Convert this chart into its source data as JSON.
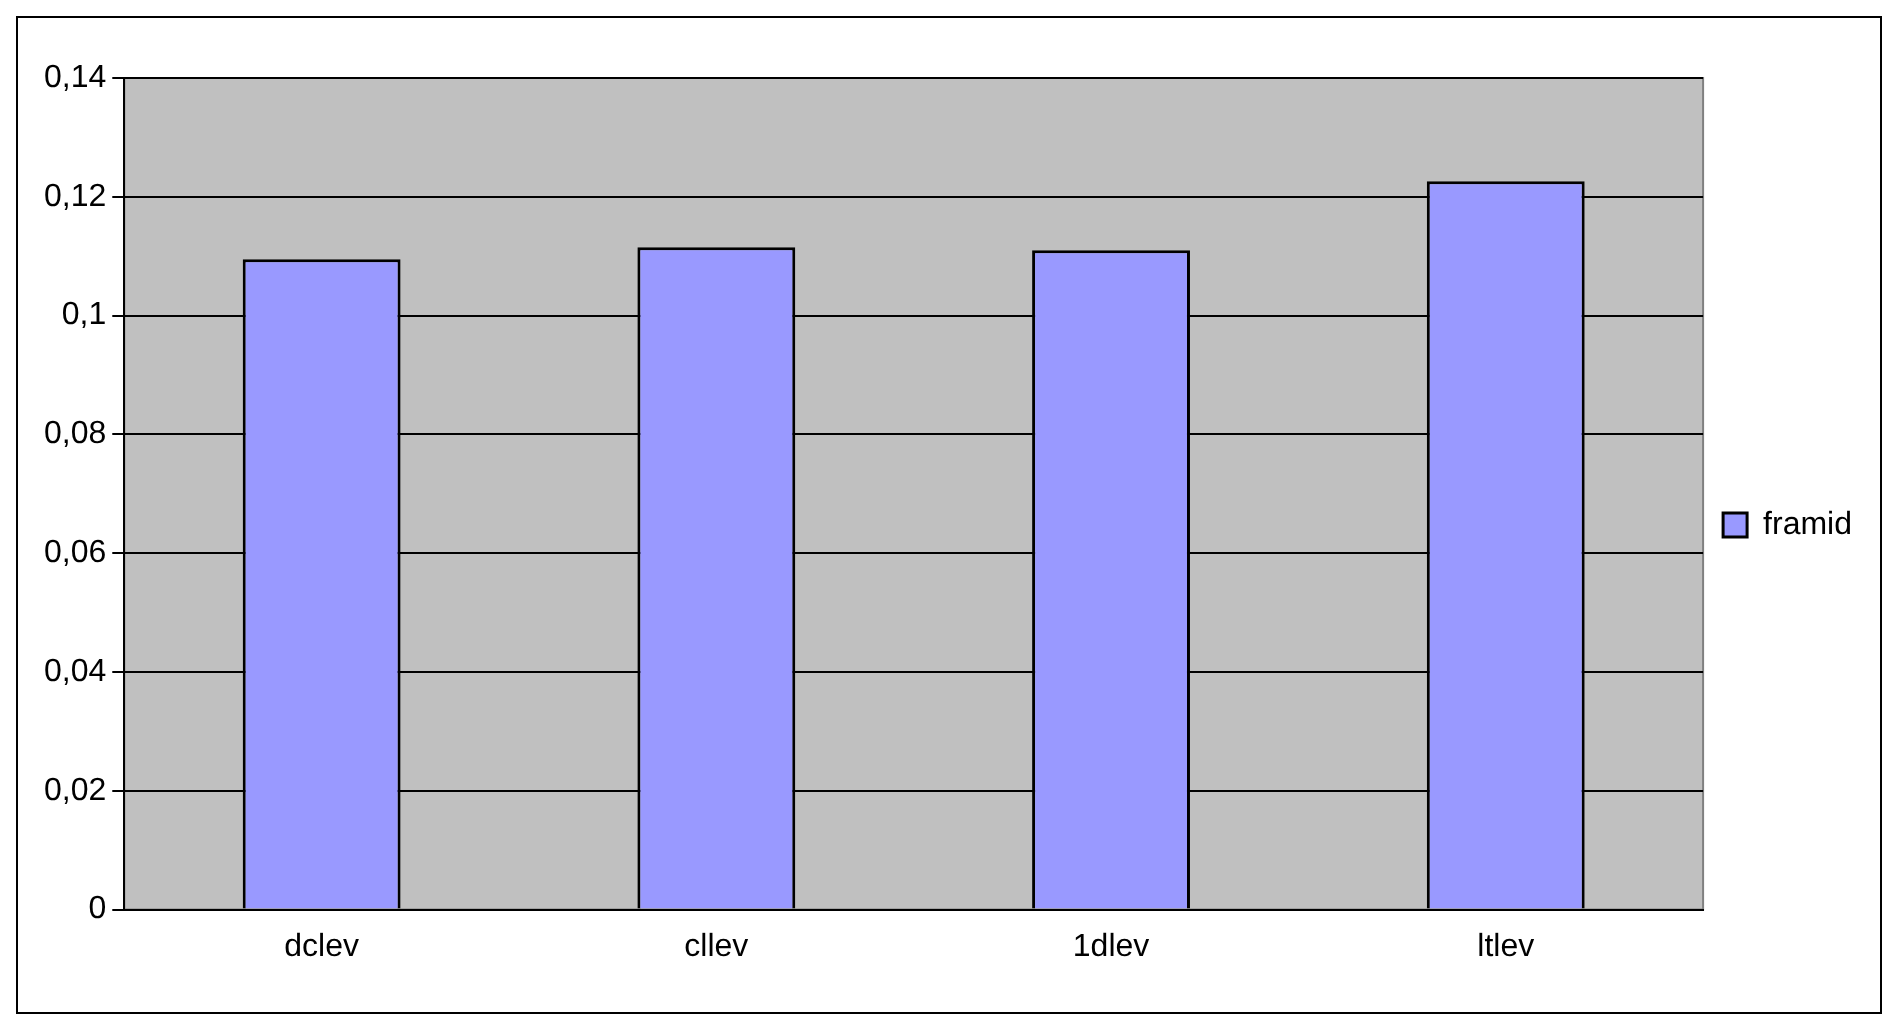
{
  "chart_data": {
    "type": "bar",
    "categories": [
      "dclev",
      "cllev",
      "1dlev",
      "ltlev"
    ],
    "series": [
      {
        "name": "framid",
        "color": "#9999ff",
        "values": [
          0.1095,
          0.1115,
          0.111,
          0.1226
        ]
      }
    ],
    "ylim": [
      0,
      0.14
    ],
    "yticks": [
      0,
      {
        "value": 0.02,
        "label": "0,02"
      },
      {
        "value": 0.04,
        "label": "0,04"
      },
      {
        "value": 0.06,
        "label": "0,06"
      },
      {
        "value": 0.08,
        "label": "0,08"
      },
      {
        "value": 0.1,
        "label": "0,1"
      },
      {
        "value": 0.12,
        "label": "0,12"
      },
      {
        "value": 0.14,
        "label": "0,14"
      }
    ],
    "grid": "y",
    "legend": "right"
  }
}
